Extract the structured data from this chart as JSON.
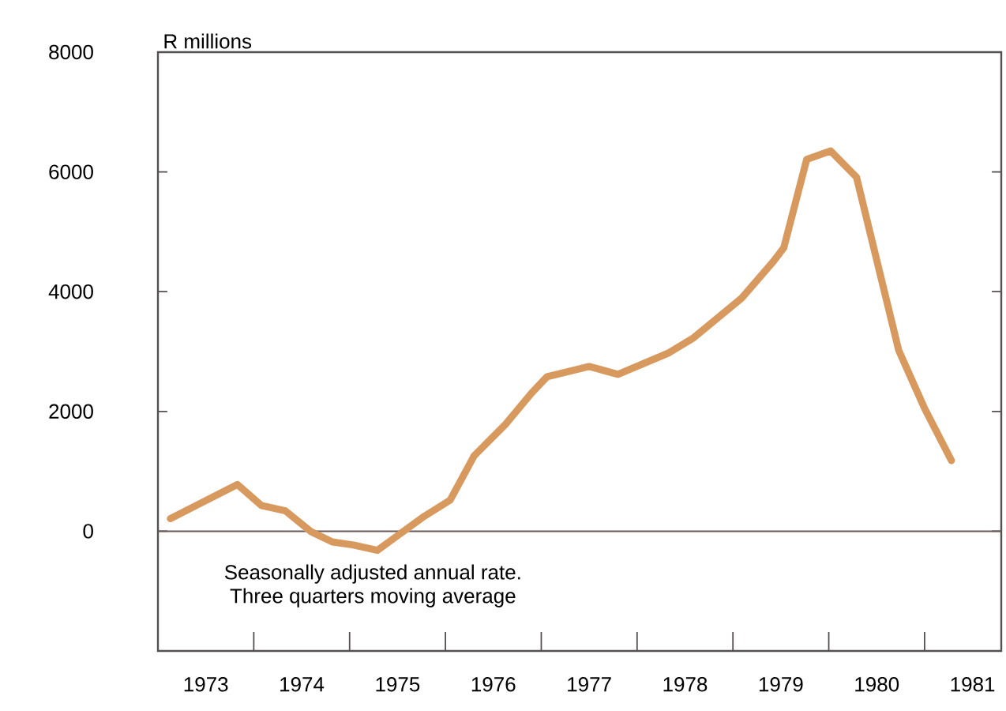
{
  "chart_data": {
    "type": "line",
    "ylabel": "R millions",
    "annotations": [
      "Seasonally adjusted annual rate.",
      "Three quarters moving average"
    ],
    "x": [
      1973.13,
      1973.83,
      1974.08,
      1974.33,
      1974.6,
      1974.82,
      1975.04,
      1975.29,
      1975.59,
      1975.78,
      1976.05,
      1976.3,
      1976.63,
      1976.9,
      1977.06,
      1977.5,
      1977.8,
      1978.32,
      1978.59,
      1979.09,
      1979.42,
      1979.53,
      1979.77,
      1980.02,
      1980.29,
      1980.73,
      1981.0,
      1981.28
    ],
    "series": [
      {
        "color": "#d8995e",
        "values": [
          210,
          780,
          430,
          340,
          -10,
          -180,
          -230,
          -320,
          30,
          250,
          520,
          1260,
          1790,
          2310,
          2580,
          2750,
          2620,
          2970,
          3230,
          3890,
          4500,
          4730,
          6210,
          6350,
          5910,
          3020,
          2050,
          1180
        ]
      }
    ],
    "xlim": [
      1973,
      1981.8
    ],
    "ylim": [
      -2000,
      8000
    ],
    "xticks": [
      {
        "value": 1973.5,
        "label": "1973"
      },
      {
        "value": 1974,
        "label": null
      },
      {
        "value": 1974.5,
        "label": "1974"
      },
      {
        "value": 1975,
        "label": null
      },
      {
        "value": 1975.5,
        "label": "1975"
      },
      {
        "value": 1976,
        "label": null
      },
      {
        "value": 1976.5,
        "label": "1976"
      },
      {
        "value": 1977,
        "label": null
      },
      {
        "value": 1977.5,
        "label": "1977"
      },
      {
        "value": 1978,
        "label": null
      },
      {
        "value": 1978.5,
        "label": "1978"
      },
      {
        "value": 1979,
        "label": null
      },
      {
        "value": 1979.5,
        "label": "1979"
      },
      {
        "value": 1980,
        "label": null
      },
      {
        "value": 1980.5,
        "label": "1980"
      },
      {
        "value": 1981,
        "label": null
      },
      {
        "value": 1981.5,
        "label": "1981"
      }
    ],
    "yticks": [
      0,
      2000,
      4000,
      6000,
      8000
    ],
    "ref_lines": [
      {
        "axis": "y",
        "value": 0,
        "color": "#6a5a5a"
      }
    ]
  }
}
